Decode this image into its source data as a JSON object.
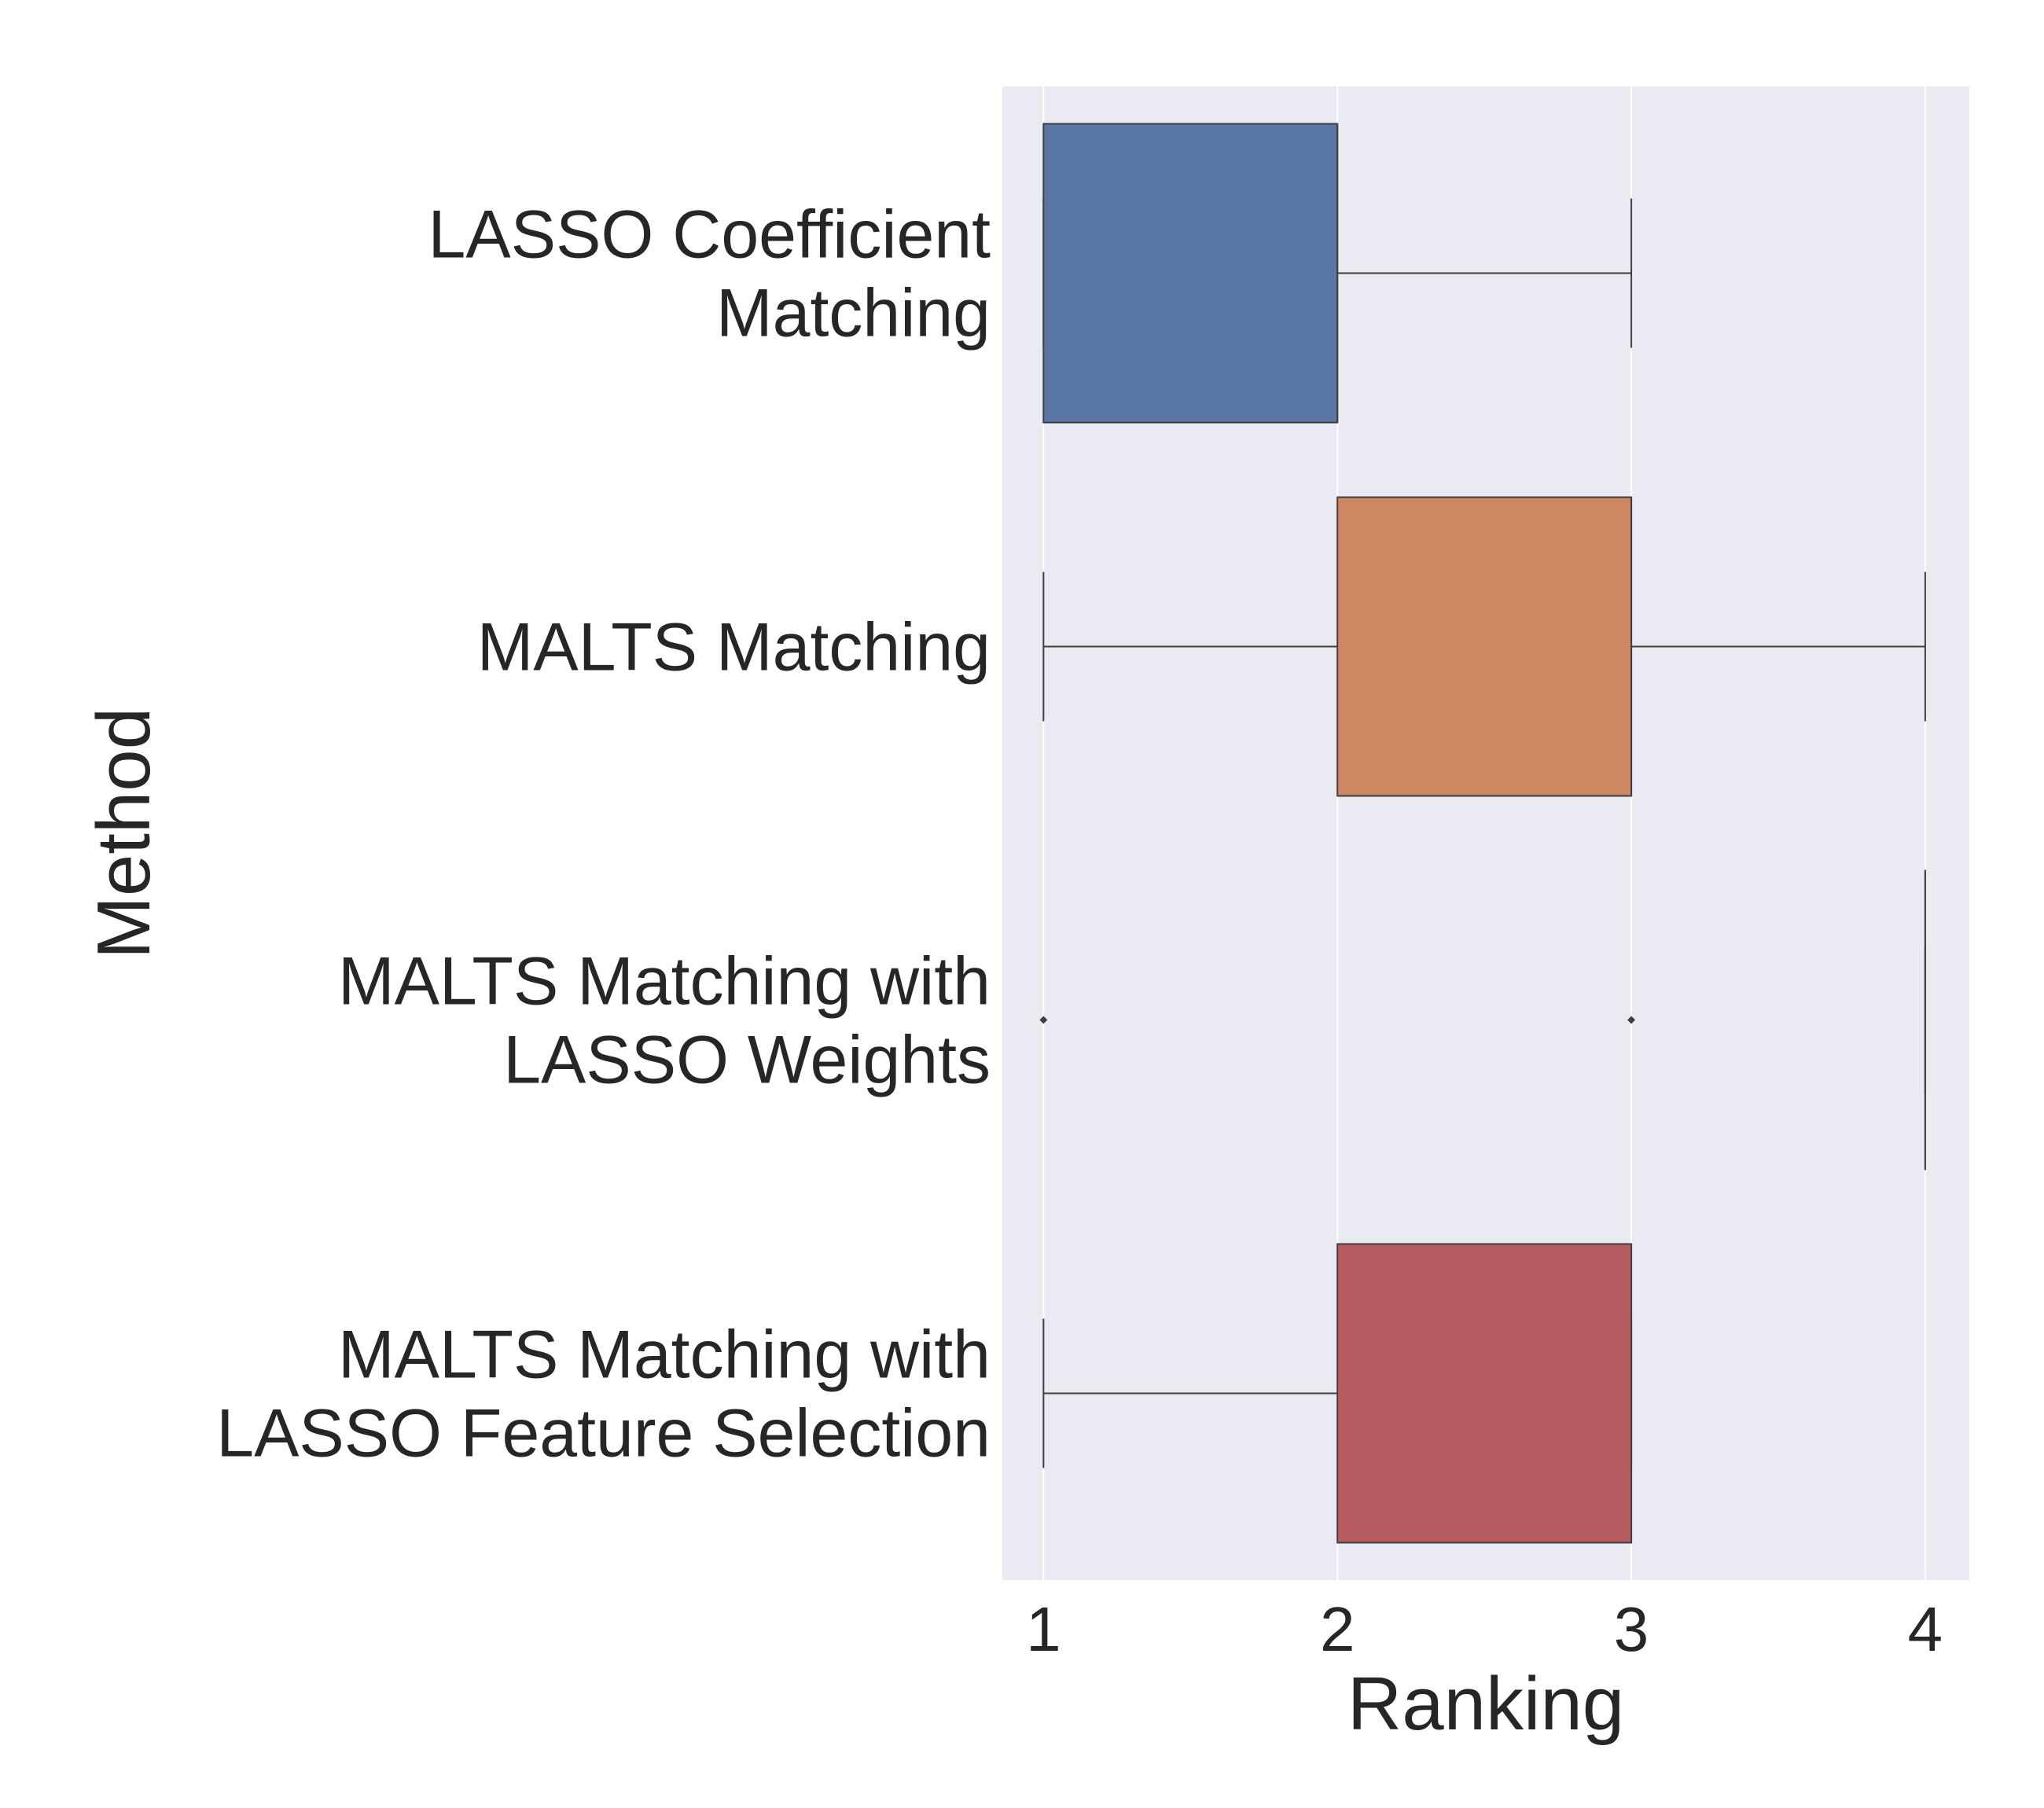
{
  "chart_data": {
    "type": "boxplot",
    "orientation": "horizontal",
    "title": "",
    "xlabel": "Ranking",
    "ylabel": "Method",
    "xlim": [
      0.86,
      4.15
    ],
    "xticks": [
      1,
      2,
      3,
      4
    ],
    "xtick_labels": [
      "1",
      "2",
      "3",
      "4"
    ],
    "grid": true,
    "background": "#eaeaf2",
    "grid_color": "#ffffff",
    "edge_color": "#3f3f3f",
    "categories": [
      {
        "label_lines": [
          "LASSO Coefficient",
          "Matching"
        ],
        "color": "#5a76a4",
        "whisker_low": 1,
        "q1": 1,
        "median": 2,
        "q3": 2,
        "whisker_high": 3,
        "outliers": []
      },
      {
        "label_lines": [
          "MALTS Matching"
        ],
        "color": "#cb8863",
        "whisker_low": 1,
        "q1": 2,
        "median": 3,
        "q3": 3,
        "whisker_high": 4,
        "outliers": []
      },
      {
        "label_lines": [
          "MALTS Matching with",
          "LASSO Weights"
        ],
        "color": "#5f9e6e",
        "whisker_low": 4,
        "q1": 4,
        "median": 4,
        "q3": 4,
        "whisker_high": 4,
        "outliers": [
          1,
          3
        ]
      },
      {
        "label_lines": [
          "MALTS Matching with",
          "LASSO Feature Selection"
        ],
        "color": "#b55d60",
        "whisker_low": 1,
        "q1": 2,
        "median": 3,
        "q3": 3,
        "whisker_high": 3,
        "outliers": []
      }
    ]
  }
}
